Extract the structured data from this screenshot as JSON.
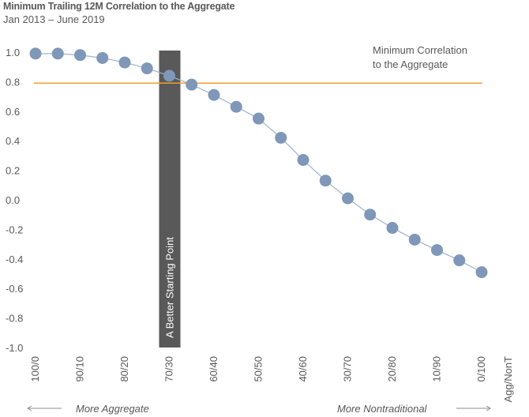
{
  "header": {
    "title": "Minimum Trailing 12M Correlation to the Aggregate",
    "subtitle": "Jan 2013 – June 2019"
  },
  "chart_data": {
    "type": "line",
    "title": "Minimum Trailing 12M Correlation to the Aggregate",
    "subtitle": "Jan 2013 – June 2019",
    "xlabel": "Agg/NonT",
    "ylabel": "",
    "ylim": [
      -1.0,
      1.0
    ],
    "yticks": [
      1.0,
      0.8,
      0.6,
      0.4,
      0.2,
      0.0,
      -0.2,
      -0.4,
      -0.6,
      -0.8,
      -1.0
    ],
    "ytick_labels": [
      "1.0",
      "0.8",
      "0.6",
      "0.4",
      "0.2",
      "0.0",
      "-0.2",
      "-0.4",
      "-0.6",
      "-0.8",
      "-1.0"
    ],
    "x_tick_labels": [
      "100/0",
      "90/10",
      "80/20",
      "70/30",
      "60/40",
      "50/50",
      "40/60",
      "30/70",
      "20/80",
      "10/90",
      "0/100"
    ],
    "x_axis_end_label": "Agg/NonT",
    "points_count": 21,
    "series": [
      {
        "values": [
          0.99,
          0.99,
          0.98,
          0.96,
          0.93,
          0.89,
          0.84,
          0.78,
          0.71,
          0.63,
          0.55,
          0.42,
          0.27,
          0.13,
          0.01,
          -0.1,
          -0.19,
          -0.27,
          -0.34,
          -0.41,
          -0.49
        ],
        "color": "#7f97b8",
        "line_color": "#9fb3cc"
      }
    ],
    "reference_line": {
      "value": 0.79,
      "color": "#f0a030",
      "label": "Minimum Correlation to the Aggregate"
    },
    "highlight_band": {
      "index": 6,
      "label": "A Better Starting Point",
      "color": "#595959"
    },
    "direction_labels": {
      "left": "More Aggregate",
      "right": "More Nontraditional"
    },
    "grid": false
  }
}
